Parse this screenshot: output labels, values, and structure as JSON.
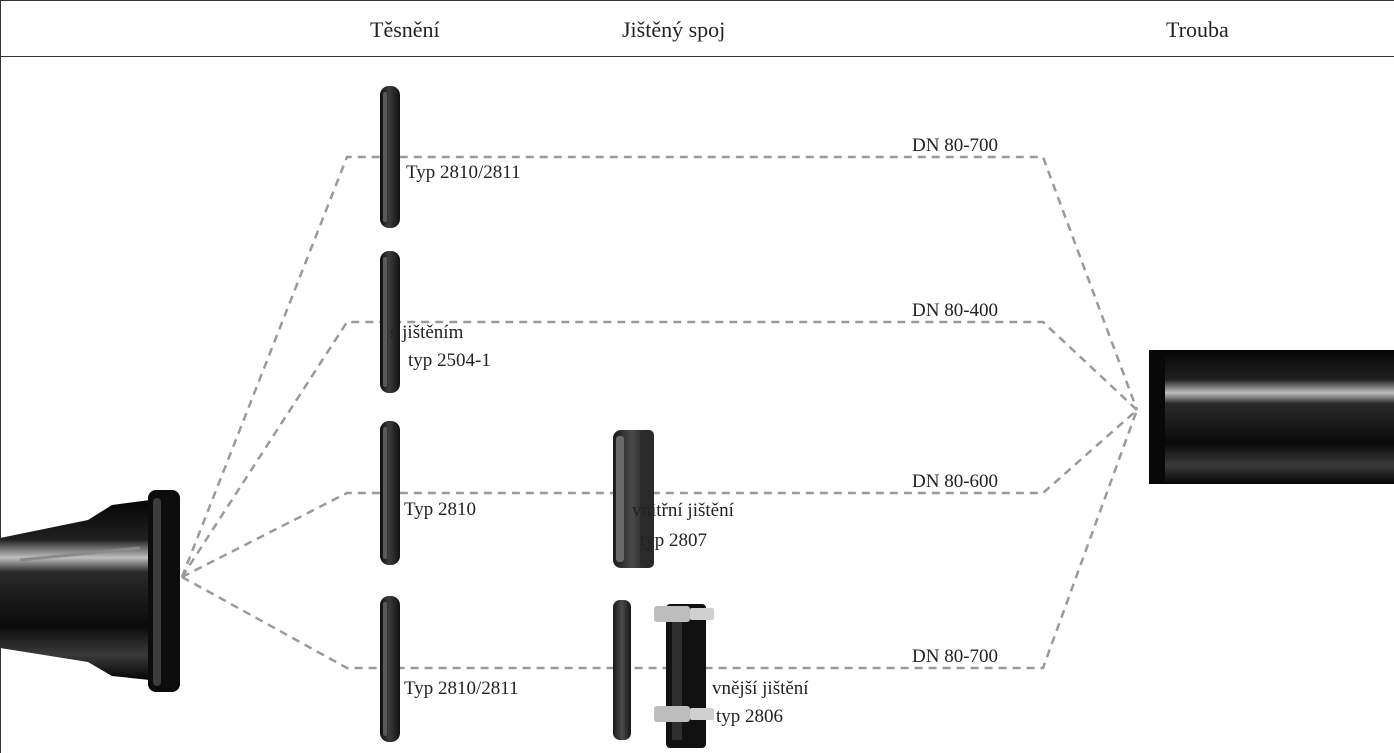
{
  "header": {
    "seal_title": "Těsnění",
    "joint_title": "Jištěný spoj",
    "pipe_title": "Trouba"
  },
  "rows": [
    {
      "seal_label": "Typ 2810/2811",
      "range": "DN 80-700"
    },
    {
      "seal_label_line1": "s jištěním",
      "seal_label_line2": "typ 2504-1",
      "range": "DN 80-400"
    },
    {
      "seal_label": "Typ 2810",
      "joint_label_line1": "vnitřní jištění",
      "joint_label_line2": "typ 2807",
      "range": "DN 80-600"
    },
    {
      "seal_label": "Typ 2810/2811",
      "joint_label_line1": "vnější jištění",
      "joint_label_line2": "typ 2806",
      "range": "DN 80-700"
    }
  ],
  "colors": {
    "connector": "#9a9a9a",
    "part": "#111111",
    "rule": "#333333"
  }
}
